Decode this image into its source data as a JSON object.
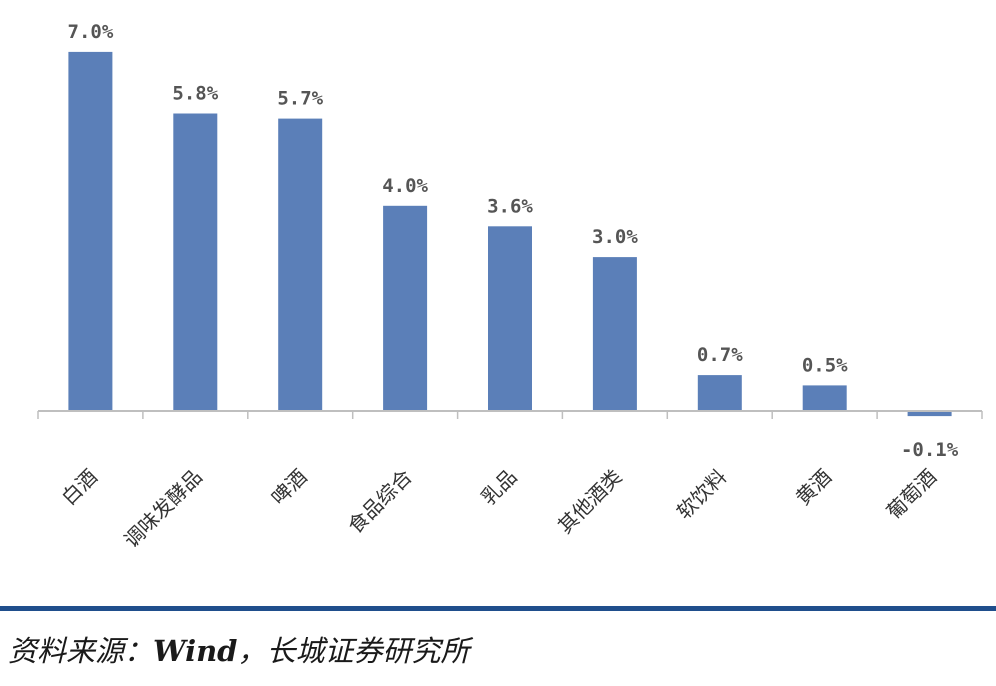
{
  "chart_data": {
    "type": "bar",
    "categories": [
      "白酒",
      "调味发酵品",
      "啤酒",
      "食品综合",
      "乳品",
      "其他酒类",
      "软饮料",
      "黄酒",
      "葡萄酒"
    ],
    "values": [
      7.0,
      5.8,
      5.7,
      4.0,
      3.6,
      3.0,
      0.7,
      0.5,
      -0.1
    ],
    "data_labels": [
      "7.0%",
      "5.8%",
      "5.7%",
      "4.0%",
      "3.6%",
      "3.0%",
      "0.7%",
      "0.5%",
      "-0.1%"
    ],
    "ylim": [
      -0.1,
      7.0
    ],
    "grid": false,
    "legend": "none",
    "bar_color": "#5b7fb8"
  },
  "source": {
    "prefix": "资料来源：",
    "brand": "Wind",
    "suffix": "，长城证券研究所"
  },
  "colors": {
    "divider": "#1f4e8c",
    "axis": "#bfbfbf"
  }
}
